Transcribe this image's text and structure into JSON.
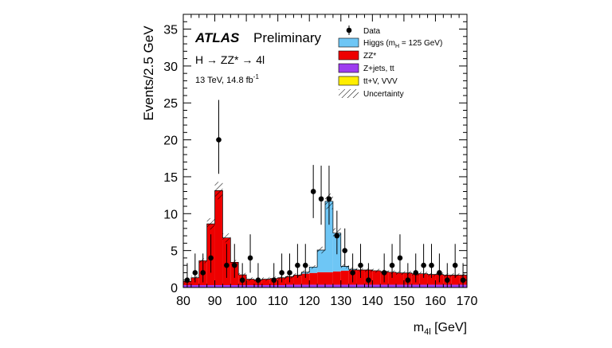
{
  "chart_data": {
    "type": "bar",
    "experiment": "ATLAS",
    "status": "Preliminary",
    "process": "H → ZZ* → 4l",
    "energy_lumi_prefix": "13 TeV, 14.8 fb",
    "energy_lumi_exp": "-1",
    "xlabel_main": "m",
    "xlabel_sub": "4l",
    "xlabel_unit": " [GeV]",
    "ylabel": "Events/2.5 GeV",
    "xlim": [
      80,
      170
    ],
    "ylim": [
      0,
      37
    ],
    "xticks": [
      80,
      90,
      100,
      110,
      120,
      130,
      140,
      150,
      160,
      170
    ],
    "yticks": [
      0,
      5,
      10,
      15,
      20,
      25,
      30,
      35
    ],
    "bin_edges": [
      80,
      82.5,
      85,
      87.5,
      90,
      92.5,
      95,
      97.5,
      100,
      102.5,
      105,
      107.5,
      110,
      112.5,
      115,
      117.5,
      120,
      122.5,
      125,
      127.5,
      130,
      132.5,
      135,
      137.5,
      140,
      142.5,
      145,
      147.5,
      150,
      152.5,
      155,
      157.5,
      160,
      162.5,
      165,
      167.5,
      170
    ],
    "series": [
      {
        "key": "ttv",
        "label": "tt+V, VVV",
        "color": "#ffee00",
        "values": [
          0.02,
          0.02,
          0.02,
          0.02,
          0.02,
          0.02,
          0.02,
          0.02,
          0.02,
          0.02,
          0.02,
          0.02,
          0.02,
          0.02,
          0.02,
          0.02,
          0.02,
          0.02,
          0.02,
          0.02,
          0.02,
          0.02,
          0.02,
          0.02,
          0.02,
          0.02,
          0.02,
          0.02,
          0.02,
          0.02,
          0.02,
          0.02,
          0.02,
          0.02,
          0.02,
          0.02
        ]
      },
      {
        "key": "zjets",
        "label": "Z+jets, tt",
        "color": "#9d3df0",
        "values": [
          0.3,
          0.3,
          0.3,
          0.3,
          0.3,
          0.3,
          0.3,
          0.3,
          0.3,
          0.3,
          0.3,
          0.3,
          0.3,
          0.35,
          0.35,
          0.35,
          0.35,
          0.35,
          0.35,
          0.35,
          0.35,
          0.35,
          0.35,
          0.35,
          0.35,
          0.35,
          0.35,
          0.35,
          0.35,
          0.35,
          0.35,
          0.35,
          0.35,
          0.35,
          0.35,
          0.35
        ]
      },
      {
        "key": "zz",
        "label": "ZZ*",
        "color": "#ee0000",
        "values": [
          0.5,
          1.0,
          3.3,
          8.3,
          12.8,
          6.4,
          3.1,
          1.4,
          0.8,
          0.7,
          0.8,
          0.9,
          1.0,
          1.1,
          1.3,
          1.5,
          1.6,
          1.7,
          1.7,
          1.8,
          1.9,
          2.0,
          2.0,
          2.0,
          1.9,
          1.8,
          1.7,
          1.6,
          1.6,
          1.5,
          1.5,
          1.4,
          1.4,
          1.3,
          1.3,
          1.3
        ]
      },
      {
        "key": "higgs",
        "label_main": "Higgs (m",
        "label_sub": "H",
        "label_end": " = 125 GeV)",
        "color": "#6ec6f5",
        "values": [
          0,
          0,
          0,
          0,
          0,
          0,
          0,
          0,
          0,
          0,
          0,
          0,
          0,
          0,
          0,
          0.2,
          0.8,
          3.0,
          9.6,
          5.2,
          0.6,
          0.1,
          0,
          0,
          0,
          0,
          0,
          0,
          0,
          0,
          0,
          0,
          0,
          0,
          0,
          0
        ]
      }
    ],
    "uncertainty_label": "Uncertainty",
    "data_label": "Data",
    "data_points": [
      {
        "x": 81.25,
        "y": 1,
        "lo": 0.0,
        "hi": 3.3
      },
      {
        "x": 83.75,
        "y": 2,
        "lo": 0.7,
        "hi": 4.6
      },
      {
        "x": 86.25,
        "y": 2,
        "lo": 0.7,
        "hi": 4.6
      },
      {
        "x": 88.75,
        "y": 4,
        "lo": 2.0,
        "hi": 7.2
      },
      {
        "x": 91.25,
        "y": 20,
        "lo": 15.4,
        "hi": 25.4
      },
      {
        "x": 93.75,
        "y": 3,
        "lo": 1.3,
        "hi": 5.9
      },
      {
        "x": 96.25,
        "y": 3,
        "lo": 1.3,
        "hi": 5.9
      },
      {
        "x": 98.75,
        "y": 1,
        "lo": 0.0,
        "hi": 3.3
      },
      {
        "x": 101.25,
        "y": 4,
        "lo": 2.0,
        "hi": 7.2
      },
      {
        "x": 103.75,
        "y": 1,
        "lo": 0.0,
        "hi": 3.3
      },
      {
        "x": 108.75,
        "y": 1,
        "lo": 0.0,
        "hi": 3.3
      },
      {
        "x": 111.25,
        "y": 2,
        "lo": 0.7,
        "hi": 4.6
      },
      {
        "x": 113.75,
        "y": 2,
        "lo": 0.7,
        "hi": 4.6
      },
      {
        "x": 116.25,
        "y": 3,
        "lo": 1.3,
        "hi": 5.9
      },
      {
        "x": 118.75,
        "y": 3,
        "lo": 1.3,
        "hi": 5.9
      },
      {
        "x": 121.25,
        "y": 13,
        "lo": 9.4,
        "hi": 16.6
      },
      {
        "x": 123.75,
        "y": 12,
        "lo": 8.5,
        "hi": 16.5
      },
      {
        "x": 126.25,
        "y": 12,
        "lo": 8.5,
        "hi": 16.5
      },
      {
        "x": 128.75,
        "y": 7,
        "lo": 4.5,
        "hi": 10.4
      },
      {
        "x": 131.25,
        "y": 5,
        "lo": 2.8,
        "hi": 8.0
      },
      {
        "x": 133.75,
        "y": 2,
        "lo": 0.7,
        "hi": 4.6
      },
      {
        "x": 136.25,
        "y": 3,
        "lo": 1.3,
        "hi": 5.9
      },
      {
        "x": 138.75,
        "y": 1,
        "lo": 0.0,
        "hi": 3.3
      },
      {
        "x": 143.75,
        "y": 2,
        "lo": 0.7,
        "hi": 4.6
      },
      {
        "x": 146.25,
        "y": 3,
        "lo": 1.3,
        "hi": 5.9
      },
      {
        "x": 148.75,
        "y": 4,
        "lo": 2.0,
        "hi": 7.2
      },
      {
        "x": 151.25,
        "y": 1,
        "lo": 0.0,
        "hi": 3.3
      },
      {
        "x": 153.75,
        "y": 2,
        "lo": 0.7,
        "hi": 4.6
      },
      {
        "x": 156.25,
        "y": 3,
        "lo": 1.3,
        "hi": 5.9
      },
      {
        "x": 158.75,
        "y": 3,
        "lo": 1.3,
        "hi": 5.9
      },
      {
        "x": 161.25,
        "y": 2,
        "lo": 0.7,
        "hi": 4.6
      },
      {
        "x": 163.75,
        "y": 1,
        "lo": 0.0,
        "hi": 3.3
      },
      {
        "x": 166.25,
        "y": 3,
        "lo": 1.3,
        "hi": 5.9
      },
      {
        "x": 168.75,
        "y": 1,
        "lo": 0.0,
        "hi": 3.3
      }
    ],
    "legend_position": "top-right",
    "grid": false
  }
}
